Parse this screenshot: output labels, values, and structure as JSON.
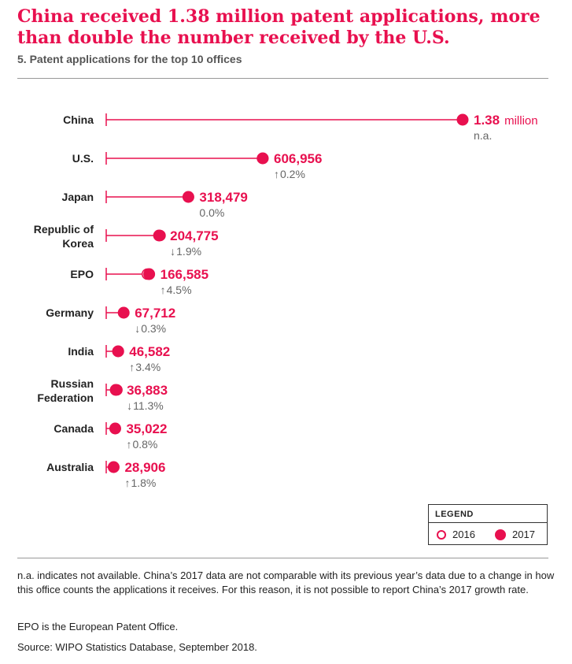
{
  "title": "China received 1.38 million patent applications, more than double the number received by the U.S.",
  "subtitle": "5. Patent applications for the top 10 offices",
  "legend": {
    "title": "LEGEND",
    "item_2016": "2016",
    "item_2017": "2017"
  },
  "notes": [
    "n.a. indicates not available. China’s 2017 data are not comparable with its previous year’s data due to a change in how this office counts the applications it receives. For this reason, it is not possible to report China’s 2017 growth rate.",
    "EPO is the European Patent Office.",
    "Source: WIPO Statistics Database, September 2018."
  ],
  "colors": {
    "accent": "#e8104f",
    "label": "#222222",
    "growth": "#666666"
  },
  "chart_data": {
    "type": "dot-plot",
    "series": [
      {
        "name": "2016",
        "style": "open-circle"
      },
      {
        "name": "2017",
        "style": "filled-circle"
      }
    ],
    "xlim": [
      0,
      1400000
    ],
    "rows": [
      {
        "label_lines": [
          "China"
        ],
        "value_2017": 1381594,
        "value_2016": null,
        "value_label": "1.38",
        "value_unit": "million",
        "growth_arrow": "",
        "growth": "n.a."
      },
      {
        "label_lines": [
          "U.S."
        ],
        "value_2017": 606956,
        "value_2016": 605571,
        "value_label": "606,956",
        "value_unit": "",
        "growth_arrow": "↑",
        "growth": "0.2%"
      },
      {
        "label_lines": [
          "Japan"
        ],
        "value_2017": 318479,
        "value_2016": 318381,
        "value_label": "318,479",
        "value_unit": "",
        "growth_arrow": "",
        "growth": "0.0%"
      },
      {
        "label_lines": [
          "Republic of",
          "Korea"
        ],
        "value_2017": 204775,
        "value_2016": 208830,
        "value_label": "204,775",
        "value_unit": "",
        "growth_arrow": "↓",
        "growth": "1.9%"
      },
      {
        "label_lines": [
          "EPO"
        ],
        "value_2017": 166585,
        "value_2016": 159353,
        "value_label": "166,585",
        "value_unit": "",
        "growth_arrow": "↑",
        "growth": "4.5%"
      },
      {
        "label_lines": [
          "Germany"
        ],
        "value_2017": 67712,
        "value_2016": 67899,
        "value_label": "67,712",
        "value_unit": "",
        "growth_arrow": "↓",
        "growth": "0.3%"
      },
      {
        "label_lines": [
          "India"
        ],
        "value_2017": 46582,
        "value_2016": 45057,
        "value_label": "46,582",
        "value_unit": "",
        "growth_arrow": "↑",
        "growth": "3.4%"
      },
      {
        "label_lines": [
          "Russian",
          "Federation"
        ],
        "value_2017": 36883,
        "value_2016": 41587,
        "value_label": "36,883",
        "value_unit": "",
        "growth_arrow": "↓",
        "growth": "11.3%"
      },
      {
        "label_lines": [
          "Canada"
        ],
        "value_2017": 35022,
        "value_2016": 34745,
        "value_label": "35,022",
        "value_unit": "",
        "growth_arrow": "↑",
        "growth": "0.8%"
      },
      {
        "label_lines": [
          "Australia"
        ],
        "value_2017": 28906,
        "value_2016": 28394,
        "value_label": "28,906",
        "value_unit": "",
        "growth_arrow": "↑",
        "growth": "1.8%"
      }
    ]
  }
}
